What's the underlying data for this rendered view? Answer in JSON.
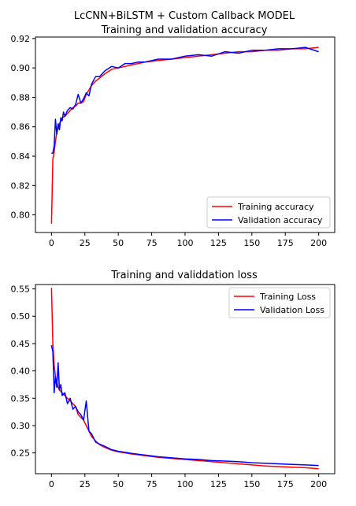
{
  "chart_data": [
    {
      "type": "line",
      "title": "LcCNN+BiLSTM + Custom Callback MODEL",
      "subtitle": "Training and validation accuracy",
      "xlabel": "",
      "ylabel": "",
      "xlim": [
        -12,
        212
      ],
      "ylim": [
        0.788,
        0.921
      ],
      "xticks": [
        0,
        25,
        50,
        75,
        100,
        125,
        150,
        175,
        200
      ],
      "yticks": [
        0.8,
        0.82,
        0.84,
        0.86,
        0.88,
        0.9,
        0.92
      ],
      "ytick_labels": [
        "0.80",
        "0.82",
        "0.84",
        "0.86",
        "0.88",
        "0.90",
        "0.92"
      ],
      "grid": false,
      "legend_position": "lower-right",
      "series": [
        {
          "name": "Training accuracy",
          "color": "#ff0000",
          "x": [
            0,
            1,
            2,
            3,
            4,
            5,
            6,
            7,
            8,
            10,
            12,
            14,
            16,
            18,
            20,
            22,
            24,
            26,
            28,
            30,
            33,
            36,
            40,
            45,
            50,
            55,
            60,
            65,
            70,
            80,
            90,
            100,
            110,
            120,
            130,
            140,
            150,
            160,
            170,
            180,
            190,
            200
          ],
          "y": [
            0.794,
            0.838,
            0.843,
            0.85,
            0.856,
            0.859,
            0.862,
            0.864,
            0.866,
            0.867,
            0.869,
            0.871,
            0.873,
            0.874,
            0.876,
            0.876,
            0.877,
            0.882,
            0.885,
            0.888,
            0.891,
            0.893,
            0.896,
            0.899,
            0.9,
            0.901,
            0.902,
            0.903,
            0.904,
            0.905,
            0.906,
            0.907,
            0.908,
            0.909,
            0.91,
            0.911,
            0.911,
            0.912,
            0.912,
            0.913,
            0.913,
            0.914
          ]
        },
        {
          "name": "Validation accuracy",
          "color": "#0000ff",
          "x": [
            0,
            1,
            2,
            3,
            4,
            5,
            6,
            7,
            8,
            9,
            10,
            12,
            14,
            16,
            18,
            20,
            22,
            24,
            26,
            28,
            30,
            33,
            36,
            40,
            45,
            50,
            55,
            60,
            65,
            70,
            80,
            90,
            100,
            110,
            120,
            130,
            140,
            150,
            160,
            170,
            180,
            190,
            200
          ],
          "y": [
            0.842,
            0.842,
            0.847,
            0.865,
            0.855,
            0.862,
            0.858,
            0.866,
            0.864,
            0.87,
            0.867,
            0.871,
            0.873,
            0.872,
            0.875,
            0.882,
            0.876,
            0.879,
            0.883,
            0.881,
            0.889,
            0.894,
            0.894,
            0.898,
            0.901,
            0.9,
            0.903,
            0.903,
            0.904,
            0.904,
            0.906,
            0.906,
            0.908,
            0.909,
            0.908,
            0.911,
            0.91,
            0.912,
            0.912,
            0.913,
            0.913,
            0.914,
            0.911
          ]
        }
      ]
    },
    {
      "type": "line",
      "title": "Training and validdation loss",
      "xlabel": "",
      "ylabel": "",
      "xlim": [
        -12,
        212
      ],
      "ylim": [
        0.212,
        0.558
      ],
      "xticks": [
        0,
        25,
        50,
        75,
        100,
        125,
        150,
        175,
        200
      ],
      "yticks": [
        0.25,
        0.3,
        0.35,
        0.4,
        0.45,
        0.5,
        0.55
      ],
      "ytick_labels": [
        "0.25",
        "0.30",
        "0.35",
        "0.40",
        "0.45",
        "0.50",
        "0.55"
      ],
      "grid": false,
      "legend_position": "upper-right",
      "series": [
        {
          "name": "Training Loss",
          "color": "#ff0000",
          "x": [
            0,
            1,
            2,
            3,
            4,
            5,
            6,
            8,
            10,
            12,
            14,
            16,
            18,
            20,
            22,
            24,
            26,
            28,
            30,
            33,
            36,
            40,
            45,
            50,
            55,
            60,
            70,
            80,
            90,
            100,
            110,
            120,
            130,
            140,
            150,
            160,
            170,
            180,
            190,
            200
          ],
          "y": [
            0.552,
            0.45,
            0.41,
            0.39,
            0.38,
            0.37,
            0.365,
            0.36,
            0.355,
            0.35,
            0.345,
            0.34,
            0.335,
            0.32,
            0.315,
            0.31,
            0.3,
            0.29,
            0.28,
            0.272,
            0.265,
            0.26,
            0.255,
            0.252,
            0.25,
            0.248,
            0.245,
            0.242,
            0.24,
            0.238,
            0.236,
            0.234,
            0.232,
            0.23,
            0.228,
            0.226,
            0.225,
            0.224,
            0.223,
            0.221
          ]
        },
        {
          "name": "Validation Loss",
          "color": "#0000ff",
          "x": [
            0,
            1,
            2,
            3,
            4,
            5,
            6,
            7,
            8,
            10,
            12,
            14,
            16,
            18,
            20,
            22,
            24,
            26,
            28,
            30,
            33,
            36,
            40,
            45,
            50,
            55,
            60,
            70,
            80,
            90,
            100,
            110,
            120,
            130,
            140,
            150,
            160,
            170,
            180,
            190,
            200
          ],
          "y": [
            0.447,
            0.435,
            0.36,
            0.39,
            0.37,
            0.415,
            0.365,
            0.375,
            0.355,
            0.36,
            0.34,
            0.35,
            0.33,
            0.335,
            0.325,
            0.32,
            0.31,
            0.345,
            0.29,
            0.285,
            0.27,
            0.266,
            0.262,
            0.256,
            0.253,
            0.251,
            0.249,
            0.246,
            0.243,
            0.241,
            0.239,
            0.238,
            0.236,
            0.235,
            0.234,
            0.232,
            0.231,
            0.23,
            0.229,
            0.228,
            0.227
          ]
        }
      ]
    }
  ]
}
